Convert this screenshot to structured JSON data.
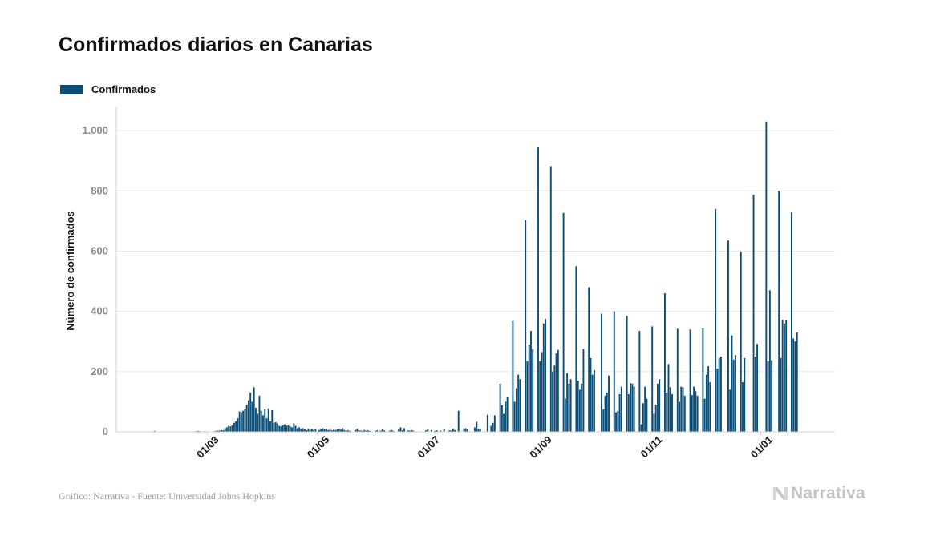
{
  "title": "Confirmados diarios en Canarias",
  "legend": {
    "label": "Confirmados",
    "color": "#0b4f78"
  },
  "source_text": "Gráfico: Narrativa - Fuente: Universidad Johns Hopkins",
  "brand": {
    "name": "Narrativa",
    "icon": "narrativa-logo-icon"
  },
  "chart_data": {
    "type": "bar",
    "title": "Confirmados diarios en Canarias",
    "ylabel": "Número de confirmados",
    "xlabel": "",
    "ylim": [
      0,
      1080
    ],
    "y_ticks": [
      {
        "value": 0,
        "label": "0"
      },
      {
        "value": 200,
        "label": "200"
      },
      {
        "value": 400,
        "label": "400"
      },
      {
        "value": 600,
        "label": "600"
      },
      {
        "value": 800,
        "label": "800"
      },
      {
        "value": 1000,
        "label": "1.000"
      }
    ],
    "x_ticks": [
      "01/03",
      "01/05",
      "01/07",
      "01/09",
      "01/11",
      "01/01"
    ],
    "grid": true,
    "legend_position": "top-left",
    "x_start": "2020-01-22",
    "x_end": "2021-01-26",
    "series": [
      {
        "name": "Confirmados",
        "color": "#0b4f78",
        "points": [
          [
            "2020-02-01",
            3
          ],
          [
            "2020-02-24",
            2
          ],
          [
            "2020-02-25",
            3
          ],
          [
            "2020-02-26",
            2
          ],
          [
            "2020-02-28",
            1
          ],
          [
            "2020-02-29",
            2
          ],
          [
            "2020-03-02",
            1
          ],
          [
            "2020-03-05",
            2
          ],
          [
            "2020-03-06",
            3
          ],
          [
            "2020-03-07",
            4
          ],
          [
            "2020-03-08",
            4
          ],
          [
            "2020-03-09",
            6
          ],
          [
            "2020-03-10",
            5
          ],
          [
            "2020-03-11",
            12
          ],
          [
            "2020-03-12",
            15
          ],
          [
            "2020-03-13",
            20
          ],
          [
            "2020-03-14",
            18
          ],
          [
            "2020-03-15",
            22
          ],
          [
            "2020-03-16",
            30
          ],
          [
            "2020-03-17",
            35
          ],
          [
            "2020-03-18",
            45
          ],
          [
            "2020-03-19",
            68
          ],
          [
            "2020-03-20",
            65
          ],
          [
            "2020-03-21",
            70
          ],
          [
            "2020-03-22",
            75
          ],
          [
            "2020-03-23",
            90
          ],
          [
            "2020-03-24",
            105
          ],
          [
            "2020-03-25",
            130
          ],
          [
            "2020-03-26",
            100
          ],
          [
            "2020-03-27",
            148
          ],
          [
            "2020-03-28",
            80
          ],
          [
            "2020-03-29",
            60
          ],
          [
            "2020-03-30",
            120
          ],
          [
            "2020-03-31",
            70
          ],
          [
            "2020-04-01",
            55
          ],
          [
            "2020-04-02",
            75
          ],
          [
            "2020-04-03",
            45
          ],
          [
            "2020-04-04",
            78
          ],
          [
            "2020-04-05",
            35
          ],
          [
            "2020-04-06",
            72
          ],
          [
            "2020-04-07",
            30
          ],
          [
            "2020-04-08",
            32
          ],
          [
            "2020-04-09",
            28
          ],
          [
            "2020-04-10",
            20
          ],
          [
            "2020-04-11",
            18
          ],
          [
            "2020-04-12",
            22
          ],
          [
            "2020-04-13",
            25
          ],
          [
            "2020-04-14",
            20
          ],
          [
            "2020-04-15",
            22
          ],
          [
            "2020-04-16",
            18
          ],
          [
            "2020-04-17",
            15
          ],
          [
            "2020-04-18",
            28
          ],
          [
            "2020-04-19",
            20
          ],
          [
            "2020-04-20",
            12
          ],
          [
            "2020-04-21",
            15
          ],
          [
            "2020-04-22",
            10
          ],
          [
            "2020-04-23",
            12
          ],
          [
            "2020-04-24",
            8
          ],
          [
            "2020-04-25",
            5
          ],
          [
            "2020-04-26",
            10
          ],
          [
            "2020-04-27",
            7
          ],
          [
            "2020-04-28",
            9
          ],
          [
            "2020-04-29",
            6
          ],
          [
            "2020-04-30",
            8
          ],
          [
            "2020-05-02",
            6
          ],
          [
            "2020-05-03",
            10
          ],
          [
            "2020-05-04",
            12
          ],
          [
            "2020-05-05",
            8
          ],
          [
            "2020-05-06",
            10
          ],
          [
            "2020-05-07",
            6
          ],
          [
            "2020-05-08",
            9
          ],
          [
            "2020-05-09",
            5
          ],
          [
            "2020-05-10",
            7
          ],
          [
            "2020-05-11",
            6
          ],
          [
            "2020-05-12",
            8
          ],
          [
            "2020-05-13",
            10
          ],
          [
            "2020-05-14",
            7
          ],
          [
            "2020-05-15",
            12
          ],
          [
            "2020-05-16",
            6
          ],
          [
            "2020-05-17",
            4
          ],
          [
            "2020-05-18",
            5
          ],
          [
            "2020-05-19",
            3
          ],
          [
            "2020-05-22",
            6
          ],
          [
            "2020-05-23",
            10
          ],
          [
            "2020-05-24",
            5
          ],
          [
            "2020-05-25",
            4
          ],
          [
            "2020-05-26",
            3
          ],
          [
            "2020-05-27",
            6
          ],
          [
            "2020-05-28",
            4
          ],
          [
            "2020-05-29",
            5
          ],
          [
            "2020-05-30",
            3
          ],
          [
            "2020-06-02",
            3
          ],
          [
            "2020-06-03",
            5
          ],
          [
            "2020-06-05",
            4
          ],
          [
            "2020-06-06",
            8
          ],
          [
            "2020-06-07",
            5
          ],
          [
            "2020-06-10",
            4
          ],
          [
            "2020-06-11",
            6
          ],
          [
            "2020-06-12",
            3
          ],
          [
            "2020-06-15",
            8
          ],
          [
            "2020-06-16",
            15
          ],
          [
            "2020-06-17",
            5
          ],
          [
            "2020-06-18",
            12
          ],
          [
            "2020-06-20",
            5
          ],
          [
            "2020-06-21",
            4
          ],
          [
            "2020-06-22",
            6
          ],
          [
            "2020-06-23",
            4
          ],
          [
            "2020-06-30",
            5
          ],
          [
            "2020-07-01",
            8
          ],
          [
            "2020-07-03",
            6
          ],
          [
            "2020-07-05",
            3
          ],
          [
            "2020-07-06",
            5
          ],
          [
            "2020-07-08",
            4
          ],
          [
            "2020-07-10",
            8
          ],
          [
            "2020-07-13",
            5
          ],
          [
            "2020-07-14",
            4
          ],
          [
            "2020-07-15",
            10
          ],
          [
            "2020-07-16",
            6
          ],
          [
            "2020-07-18",
            70
          ],
          [
            "2020-07-21",
            10
          ],
          [
            "2020-07-22",
            12
          ],
          [
            "2020-07-23",
            8
          ],
          [
            "2020-07-27",
            15
          ],
          [
            "2020-07-28",
            33
          ],
          [
            "2020-07-29",
            10
          ],
          [
            "2020-07-30",
            8
          ],
          [
            "2020-08-03",
            57
          ],
          [
            "2020-08-05",
            20
          ],
          [
            "2020-08-06",
            30
          ],
          [
            "2020-08-07",
            55
          ],
          [
            "2020-08-10",
            160
          ],
          [
            "2020-08-11",
            88
          ],
          [
            "2020-08-12",
            60
          ],
          [
            "2020-08-13",
            100
          ],
          [
            "2020-08-14",
            115
          ],
          [
            "2020-08-17",
            368
          ],
          [
            "2020-08-18",
            100
          ],
          [
            "2020-08-19",
            145
          ],
          [
            "2020-08-20",
            190
          ],
          [
            "2020-08-21",
            175
          ],
          [
            "2020-08-24",
            703
          ],
          [
            "2020-08-25",
            235
          ],
          [
            "2020-08-26",
            290
          ],
          [
            "2020-08-27",
            335
          ],
          [
            "2020-08-28",
            275
          ],
          [
            "2020-08-31",
            944
          ],
          [
            "2020-09-01",
            235
          ],
          [
            "2020-09-02",
            265
          ],
          [
            "2020-09-03",
            360
          ],
          [
            "2020-09-04",
            375
          ],
          [
            "2020-09-07",
            882
          ],
          [
            "2020-09-08",
            200
          ],
          [
            "2020-09-09",
            220
          ],
          [
            "2020-09-10",
            260
          ],
          [
            "2020-09-11",
            272
          ],
          [
            "2020-09-14",
            727
          ],
          [
            "2020-09-15",
            110
          ],
          [
            "2020-09-16",
            195
          ],
          [
            "2020-09-17",
            160
          ],
          [
            "2020-09-18",
            175
          ],
          [
            "2020-09-21",
            550
          ],
          [
            "2020-09-22",
            170
          ],
          [
            "2020-09-23",
            140
          ],
          [
            "2020-09-24",
            160
          ],
          [
            "2020-09-25",
            275
          ],
          [
            "2020-09-28",
            480
          ],
          [
            "2020-09-29",
            245
          ],
          [
            "2020-09-30",
            190
          ],
          [
            "2020-10-01",
            205
          ],
          [
            "2020-10-05",
            392
          ],
          [
            "2020-10-06",
            75
          ],
          [
            "2020-10-07",
            120
          ],
          [
            "2020-10-08",
            130
          ],
          [
            "2020-10-09",
            187
          ],
          [
            "2020-10-12",
            400
          ],
          [
            "2020-10-13",
            65
          ],
          [
            "2020-10-14",
            70
          ],
          [
            "2020-10-15",
            125
          ],
          [
            "2020-10-16",
            150
          ],
          [
            "2020-10-19",
            385
          ],
          [
            "2020-10-20",
            125
          ],
          [
            "2020-10-21",
            162
          ],
          [
            "2020-10-22",
            160
          ],
          [
            "2020-10-23",
            150
          ],
          [
            "2020-10-26",
            335
          ],
          [
            "2020-10-27",
            25
          ],
          [
            "2020-10-28",
            95
          ],
          [
            "2020-10-29",
            150
          ],
          [
            "2020-10-30",
            110
          ],
          [
            "2020-11-02",
            350
          ],
          [
            "2020-11-03",
            60
          ],
          [
            "2020-11-04",
            90
          ],
          [
            "2020-11-05",
            160
          ],
          [
            "2020-11-06",
            175
          ],
          [
            "2020-11-09",
            460
          ],
          [
            "2020-11-10",
            130
          ],
          [
            "2020-11-11",
            225
          ],
          [
            "2020-11-12",
            148
          ],
          [
            "2020-11-13",
            125
          ],
          [
            "2020-11-16",
            342
          ],
          [
            "2020-11-17",
            100
          ],
          [
            "2020-11-18",
            150
          ],
          [
            "2020-11-19",
            148
          ],
          [
            "2020-11-20",
            120
          ],
          [
            "2020-11-23",
            340
          ],
          [
            "2020-11-24",
            122
          ],
          [
            "2020-11-25",
            150
          ],
          [
            "2020-11-26",
            135
          ],
          [
            "2020-11-27",
            120
          ],
          [
            "2020-11-30",
            345
          ],
          [
            "2020-12-01",
            110
          ],
          [
            "2020-12-02",
            190
          ],
          [
            "2020-12-03",
            218
          ],
          [
            "2020-12-04",
            165
          ],
          [
            "2020-12-07",
            740
          ],
          [
            "2020-12-08",
            210
          ],
          [
            "2020-12-09",
            245
          ],
          [
            "2020-12-10",
            250
          ],
          [
            "2020-12-14",
            635
          ],
          [
            "2020-12-15",
            140
          ],
          [
            "2020-12-16",
            320
          ],
          [
            "2020-12-17",
            240
          ],
          [
            "2020-12-18",
            255
          ],
          [
            "2020-12-21",
            598
          ],
          [
            "2020-12-22",
            165
          ],
          [
            "2020-12-23",
            245
          ],
          [
            "2020-12-28",
            787
          ],
          [
            "2020-12-29",
            250
          ],
          [
            "2020-12-30",
            292
          ],
          [
            "2021-01-04",
            1030
          ],
          [
            "2021-01-05",
            235
          ],
          [
            "2021-01-06",
            470
          ],
          [
            "2021-01-07",
            238
          ],
          [
            "2021-01-11",
            800
          ],
          [
            "2021-01-12",
            245
          ],
          [
            "2021-01-13",
            372
          ],
          [
            "2021-01-14",
            360
          ],
          [
            "2021-01-15",
            370
          ],
          [
            "2021-01-18",
            730
          ],
          [
            "2021-01-19",
            310
          ],
          [
            "2021-01-20",
            300
          ],
          [
            "2021-01-21",
            330
          ]
        ]
      }
    ]
  }
}
